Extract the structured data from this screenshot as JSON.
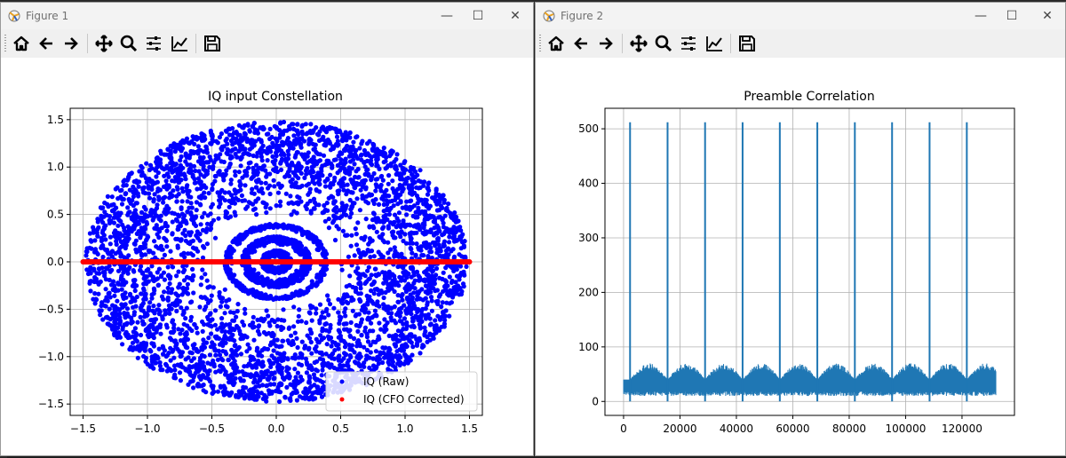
{
  "windows": [
    {
      "title": "Figure 1",
      "chart_data": {
        "type": "scatter",
        "title": "IQ input Constellation",
        "xlabel": "",
        "ylabel": "",
        "xlim": [
          -1.6,
          1.6
        ],
        "ylim": [
          -1.62,
          1.62
        ],
        "xticks": [
          -1.5,
          -1.0,
          -0.5,
          0.0,
          0.5,
          1.0,
          1.5
        ],
        "xtick_labels": [
          "−1.5",
          "−1.0",
          "−0.5",
          "0.0",
          "0.5",
          "1.0",
          "1.5"
        ],
        "yticks": [
          -1.5,
          -1.0,
          -0.5,
          0.0,
          0.5,
          1.0,
          1.5
        ],
        "ytick_labels": [
          "−1.5",
          "−1.0",
          "−0.5",
          "0.0",
          "0.5",
          "1.0",
          "1.5"
        ],
        "grid": true,
        "legend_position": "lower right",
        "series": [
          {
            "name": "IQ (Raw)",
            "color": "#0000ff",
            "rings": [
              {
                "r_in": 0.05,
                "r_out": 0.12
              },
              {
                "r_in": 0.18,
                "r_out": 0.27
              },
              {
                "r_in": 0.34,
                "r_out": 0.4
              },
              {
                "r_in": 0.48,
                "r_out": 1.48
              }
            ],
            "x_max": 1.5,
            "y_max": 1.5
          },
          {
            "name": "IQ (CFO Corrected)",
            "color": "#ff0000",
            "x_range": [
              -1.5,
              1.5
            ],
            "y": 0.0
          }
        ]
      }
    },
    {
      "title": "Figure 2",
      "chart_data": {
        "type": "line",
        "title": "Preamble Correlation",
        "xlabel": "",
        "ylabel": "",
        "xlim": [
          -6600,
          138600
        ],
        "ylim": [
          -25.6,
          537.6
        ],
        "xticks": [
          0,
          20000,
          40000,
          60000,
          80000,
          100000,
          120000
        ],
        "xtick_labels": [
          "0",
          "20000",
          "40000",
          "60000",
          "80000",
          "100000",
          "120000"
        ],
        "yticks": [
          0,
          100,
          200,
          300,
          400,
          500
        ],
        "ytick_labels": [
          "0",
          "100",
          "200",
          "300",
          "400",
          "500"
        ],
        "grid": true,
        "color": "#1f77b4",
        "x_range": [
          0,
          132000
        ],
        "peaks_x": [
          2300,
          15600,
          28900,
          42200,
          55400,
          68700,
          82000,
          95200,
          108500,
          121700
        ],
        "peak_value": 512,
        "noise_floor": [
          10,
          40
        ],
        "noise_peak_max": 70
      }
    }
  ],
  "toolbar": {
    "buttons": [
      {
        "icon": "home-icon",
        "name": "home-button"
      },
      {
        "icon": "back-arrow-icon",
        "name": "back-button"
      },
      {
        "icon": "forward-arrow-icon",
        "name": "forward-button"
      },
      {
        "icon": "pan-move-icon",
        "name": "pan-button"
      },
      {
        "icon": "zoom-magnifier-icon",
        "name": "zoom-button"
      },
      {
        "icon": "subplots-sliders-icon",
        "name": "subplots-button"
      },
      {
        "icon": "edit-axis-icon",
        "name": "edit-axis-button"
      },
      {
        "icon": "save-floppy-icon",
        "name": "save-button"
      }
    ]
  },
  "window_controls": {
    "minimize": "—",
    "maximize": "☐",
    "close": "✕"
  }
}
